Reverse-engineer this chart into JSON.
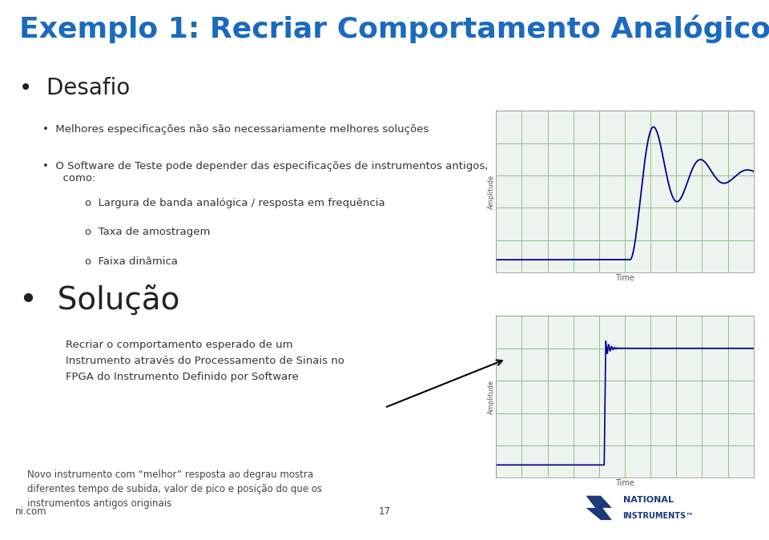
{
  "title": "Exemplo 1: Recriar Comportamento Analógico",
  "title_color": "#1a6abf",
  "title_fontsize": 26,
  "background_color": "#ffffff",
  "footer_bar_color": "#1a3a7a",
  "bullet1": "Desafio",
  "bullet1_fontsize": 20,
  "sub_bullets": [
    "Melhores especificações não são necessariamente melhores soluções",
    "O Software de Teste pode depender das especificações de instrumentos antigos,\n      como:"
  ],
  "sub_sub_bullets": [
    "Largura de banda analógica / resposta em frequência",
    "Taxa de amostragem",
    "Faixa dinâmica"
  ],
  "bullet2": "Solução",
  "bullet2_fontsize": 28,
  "bullet2_sub": "Recriar o comportamento esperado de um\nInstrumento através do Processamento de Sinais no\nFPGA do Instrumento Definido por Software",
  "footer_note": "Novo instrumento com “melhor” resposta ao degrau mostra\ndiferentes tempo de subida, valor de pico e posição do que os\ninstrumentos antigos originais",
  "footer_left": "ni.com",
  "footer_center": "17",
  "chart_bg": "#edf3ed",
  "grid_color": "#80b880",
  "line_color": "#00008b",
  "ni_logo_color": "#1a3a7a",
  "ni_chevron_color": "#1a3a7a"
}
